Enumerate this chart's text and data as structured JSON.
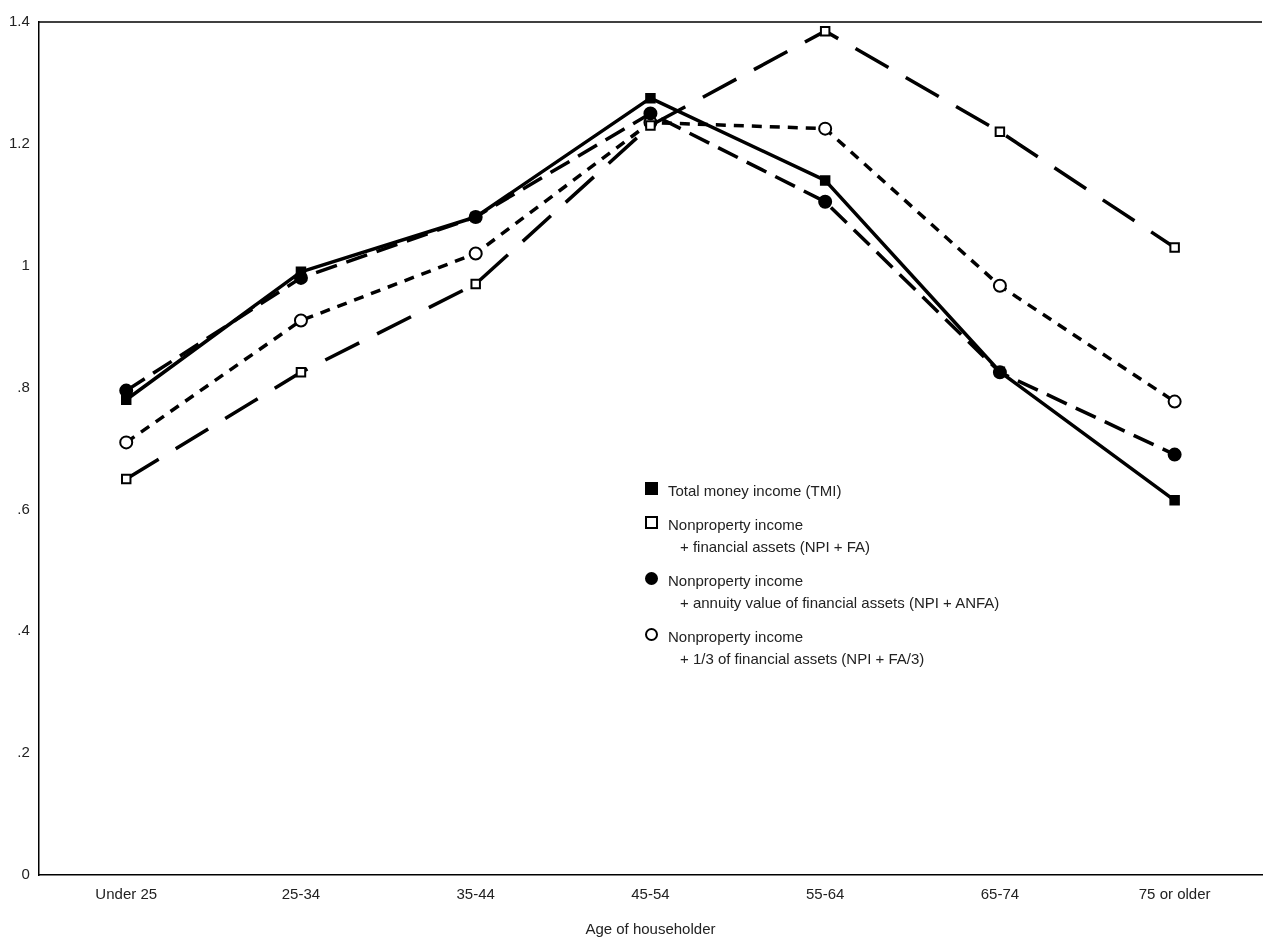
{
  "chart_data": {
    "type": "line",
    "xlabel": "Age of householder",
    "categories": [
      "Under 25",
      "25-34",
      "35-44",
      "45-54",
      "55-64",
      "65-74",
      "75 or older"
    ],
    "ylim": [
      0,
      1.4
    ],
    "yticks": [
      0,
      {
        "value": 0.2,
        "label": ".2"
      },
      {
        "value": 0.4,
        "label": ".4"
      },
      {
        "value": 0.6,
        "label": ".6"
      },
      {
        "value": 0.8,
        "label": ".8"
      },
      1,
      1.2,
      1.4
    ],
    "grid": false,
    "legend": "bottom right",
    "series": [
      {
        "name": "Total money income (TMI)",
        "color": "#000000",
        "marker": "square",
        "line_style": "solid",
        "values": [
          0.78,
          0.99,
          1.08,
          1.275,
          1.14,
          0.826,
          0.615
        ]
      },
      {
        "name": "Nonproperty income\n+ financial assets (NPI + FA)",
        "color": "#000000",
        "marker": "square",
        "line_style": "dashed",
        "values": [
          0.65,
          0.825,
          0.97,
          1.23,
          1.385,
          1.22,
          1.03
        ]
      },
      {
        "name": "Nonproperty income\n+ annuity value of financial assets (NPI + ANFA)",
        "color": "#000000",
        "marker": "circle",
        "line_style": "dashed",
        "values": [
          0.795,
          0.98,
          1.08,
          1.25,
          1.105,
          0.825,
          0.69
        ]
      },
      {
        "name": "Nonproperty income\n+ 1/3 of financial assets (NPI + FA/3)",
        "color": "#000000",
        "marker": "circle",
        "line_style": "dotted",
        "values": [
          0.71,
          0.91,
          1.02,
          1.235,
          1.225,
          0.967,
          0.777
        ]
      }
    ]
  }
}
